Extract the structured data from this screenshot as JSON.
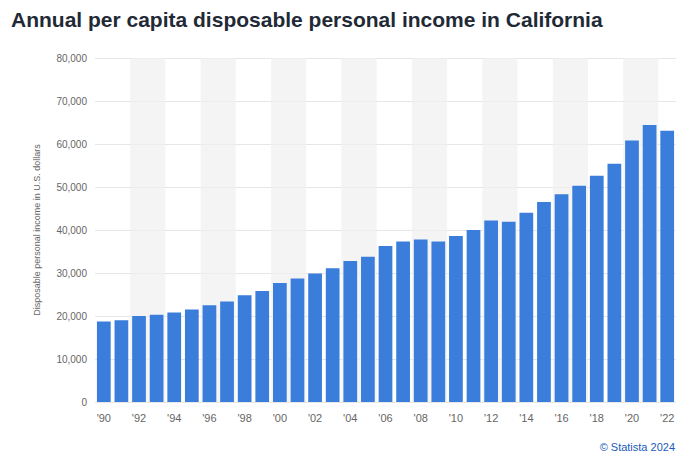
{
  "chart_data": {
    "type": "bar",
    "title": "Annual per capita disposable personal income in California",
    "y_label": "Disposable personal income in U.S. dollars",
    "source": "© Statista 2024",
    "categories": [
      "'90",
      null,
      "'92",
      null,
      "'94",
      null,
      "'96",
      null,
      "'98",
      null,
      "'00",
      null,
      "'02",
      null,
      "'04",
      null,
      "'06",
      null,
      "'08",
      null,
      "'10",
      null,
      "'12",
      null,
      "'14",
      null,
      "'16",
      null,
      "'18",
      null,
      "'20",
      null,
      "'22"
    ],
    "values": [
      18700,
      19000,
      20000,
      20300,
      20800,
      21500,
      22500,
      23400,
      24800,
      25800,
      27700,
      28700,
      29900,
      31100,
      32800,
      33800,
      36300,
      37300,
      37800,
      37300,
      38600,
      40000,
      42200,
      41900,
      44000,
      46500,
      48300,
      50300,
      52600,
      55400,
      60800,
      64400,
      63100
    ],
    "color": "#3a7ddb",
    "ylim": [
      0,
      80000
    ],
    "yticks": [
      0,
      {
        "value": 10000,
        "label": "10,000"
      },
      {
        "value": 20000,
        "label": "20,000"
      },
      {
        "value": 30000,
        "label": "30,000"
      },
      {
        "value": 40000,
        "label": "40,000"
      },
      {
        "value": 50000,
        "label": "50,000"
      },
      {
        "value": 60000,
        "label": "60,000"
      },
      {
        "value": 70000,
        "label": "70,000"
      },
      {
        "value": 80000,
        "label": "80,000"
      }
    ],
    "grid": true
  }
}
